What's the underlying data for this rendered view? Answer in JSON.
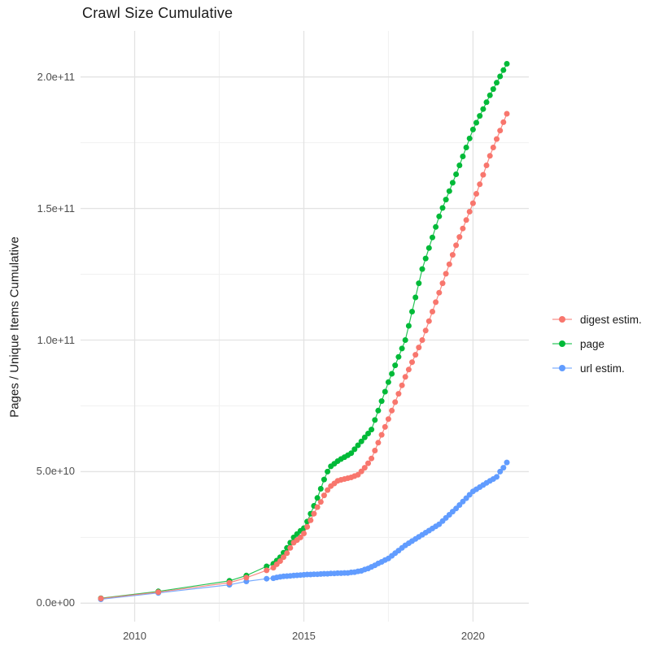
{
  "title": "Crawl Size Cumulative",
  "legend": {
    "position": "right",
    "items": [
      {
        "label": "digest estim.",
        "color": "#F8766D"
      },
      {
        "label": "page",
        "color": "#00BA38"
      },
      {
        "label": "url estim.",
        "color": "#619CFF"
      }
    ]
  },
  "chart_data": {
    "type": "line",
    "title": "Crawl Size Cumulative",
    "xlabel": "",
    "ylabel": "Pages / Unique Items Cumulative",
    "grid": true,
    "legend_position": "right",
    "xlim": [
      2008.4,
      2021.65
    ],
    "ylim": [
      -7000000000.0,
      217500000000.0
    ],
    "x_ticks": [
      {
        "value": 2010,
        "label": "2010"
      },
      {
        "value": 2015,
        "label": "2015"
      },
      {
        "value": 2020,
        "label": "2020"
      }
    ],
    "y_ticks": [
      {
        "value": 0,
        "label": "0.0e+00"
      },
      {
        "value": 50000000000.0,
        "label": "5.0e+10"
      },
      {
        "value": 100000000000.0,
        "label": "1.0e+11"
      },
      {
        "value": 150000000000.0,
        "label": "1.5e+11"
      },
      {
        "value": 200000000000.0,
        "label": "2.0e+11"
      }
    ],
    "x_minor": [
      2012.5,
      2017.5
    ],
    "y_minor": [
      25000000000.0,
      75000000000.0,
      125000000000.0,
      175000000000.0
    ],
    "value_multiplier": 1000000000.0,
    "draw_order": [
      2,
      1,
      0
    ],
    "series": [
      {
        "name": "digest estim.",
        "color": "#F8766D",
        "points": [
          [
            2009.0,
            1.8
          ],
          [
            2010.7,
            4.2
          ],
          [
            2012.8,
            7.8
          ],
          [
            2013.3,
            9.7
          ],
          [
            2013.9,
            12.5
          ],
          [
            2014.1,
            13.5
          ],
          [
            2014.2,
            14.8
          ],
          [
            2014.3,
            16
          ],
          [
            2014.4,
            17.5
          ],
          [
            2014.5,
            19
          ],
          [
            2014.6,
            21
          ],
          [
            2014.7,
            23
          ],
          [
            2014.8,
            24
          ],
          [
            2014.9,
            25
          ],
          [
            2015.0,
            26.5
          ],
          [
            2015.1,
            29
          ],
          [
            2015.2,
            31.5
          ],
          [
            2015.3,
            34
          ],
          [
            2015.4,
            36.5
          ],
          [
            2015.5,
            38.5
          ],
          [
            2015.6,
            41
          ],
          [
            2015.7,
            43
          ],
          [
            2015.8,
            44.5
          ],
          [
            2015.9,
            45.5
          ],
          [
            2016.0,
            46.5
          ],
          [
            2016.1,
            46.9
          ],
          [
            2016.2,
            47.2
          ],
          [
            2016.3,
            47.5
          ],
          [
            2016.4,
            47.8
          ],
          [
            2016.5,
            48.3
          ],
          [
            2016.6,
            48.8
          ],
          [
            2016.7,
            50.1
          ],
          [
            2016.8,
            51.5
          ],
          [
            2016.9,
            53.2
          ],
          [
            2017.0,
            55
          ],
          [
            2017.1,
            58
          ],
          [
            2017.2,
            61
          ],
          [
            2017.3,
            64
          ],
          [
            2017.4,
            67
          ],
          [
            2017.5,
            70
          ],
          [
            2017.6,
            73.2
          ],
          [
            2017.7,
            76.4
          ],
          [
            2017.8,
            79.6
          ],
          [
            2017.9,
            82.8
          ],
          [
            2018.0,
            86
          ],
          [
            2018.1,
            88.8
          ],
          [
            2018.2,
            91.6
          ],
          [
            2018.3,
            94.4
          ],
          [
            2018.4,
            97.2
          ],
          [
            2018.5,
            100
          ],
          [
            2018.6,
            103.6
          ],
          [
            2018.7,
            107.2
          ],
          [
            2018.8,
            110.8
          ],
          [
            2018.9,
            114.4
          ],
          [
            2019.0,
            118
          ],
          [
            2019.1,
            121.6
          ],
          [
            2019.2,
            125.2
          ],
          [
            2019.3,
            128.8
          ],
          [
            2019.4,
            132.4
          ],
          [
            2019.5,
            136
          ],
          [
            2019.6,
            139.2
          ],
          [
            2019.7,
            142.4
          ],
          [
            2019.8,
            145.6
          ],
          [
            2019.9,
            148.8
          ],
          [
            2020.0,
            152
          ],
          [
            2020.1,
            155.6
          ],
          [
            2020.2,
            159.2
          ],
          [
            2020.3,
            162.8
          ],
          [
            2020.4,
            166.4
          ],
          [
            2020.5,
            170
          ],
          [
            2020.6,
            173.2
          ],
          [
            2020.7,
            176.4
          ],
          [
            2020.8,
            179.6
          ],
          [
            2020.9,
            182.8
          ],
          [
            2021.0,
            186
          ]
        ]
      },
      {
        "name": "page",
        "color": "#00BA38",
        "points": [
          [
            2009.0,
            1.9
          ],
          [
            2010.7,
            4.5
          ],
          [
            2012.8,
            8.5
          ],
          [
            2013.3,
            10.5
          ],
          [
            2013.9,
            14
          ],
          [
            2014.1,
            15
          ],
          [
            2014.2,
            16.2
          ],
          [
            2014.3,
            17.5
          ],
          [
            2014.4,
            19.2
          ],
          [
            2014.5,
            21
          ],
          [
            2014.6,
            23
          ],
          [
            2014.7,
            25
          ],
          [
            2014.8,
            26.3
          ],
          [
            2014.9,
            27.5
          ],
          [
            2015.0,
            28.5
          ],
          [
            2015.1,
            31
          ],
          [
            2015.2,
            34
          ],
          [
            2015.3,
            37
          ],
          [
            2015.4,
            40
          ],
          [
            2015.5,
            43.5
          ],
          [
            2015.6,
            47
          ],
          [
            2015.7,
            50
          ],
          [
            2015.8,
            52
          ],
          [
            2015.9,
            53
          ],
          [
            2016.0,
            54
          ],
          [
            2016.1,
            54.8
          ],
          [
            2016.2,
            55.5
          ],
          [
            2016.3,
            56.2
          ],
          [
            2016.4,
            57
          ],
          [
            2016.5,
            58.5
          ],
          [
            2016.6,
            60
          ],
          [
            2016.7,
            61.5
          ],
          [
            2016.8,
            63
          ],
          [
            2016.9,
            64.5
          ],
          [
            2017.0,
            66
          ],
          [
            2017.1,
            69.6
          ],
          [
            2017.2,
            73.2
          ],
          [
            2017.3,
            76.8
          ],
          [
            2017.4,
            80.4
          ],
          [
            2017.5,
            84
          ],
          [
            2017.6,
            87.2
          ],
          [
            2017.7,
            90.4
          ],
          [
            2017.8,
            93.6
          ],
          [
            2017.9,
            96.8
          ],
          [
            2018.0,
            100
          ],
          [
            2018.1,
            105.4
          ],
          [
            2018.2,
            110.8
          ],
          [
            2018.3,
            116.2
          ],
          [
            2018.4,
            121.6
          ],
          [
            2018.5,
            127
          ],
          [
            2018.6,
            131
          ],
          [
            2018.7,
            135
          ],
          [
            2018.8,
            139
          ],
          [
            2018.9,
            143
          ],
          [
            2019.0,
            147
          ],
          [
            2019.1,
            150.2
          ],
          [
            2019.2,
            153.4
          ],
          [
            2019.3,
            156.6
          ],
          [
            2019.4,
            159.8
          ],
          [
            2019.5,
            163
          ],
          [
            2019.6,
            166.4
          ],
          [
            2019.7,
            169.8
          ],
          [
            2019.8,
            173.2
          ],
          [
            2019.9,
            176.6
          ],
          [
            2020.0,
            180
          ],
          [
            2020.1,
            182.6
          ],
          [
            2020.2,
            185.2
          ],
          [
            2020.3,
            187.8
          ],
          [
            2020.4,
            190.4
          ],
          [
            2020.5,
            193
          ],
          [
            2020.6,
            195.4
          ],
          [
            2020.7,
            197.8
          ],
          [
            2020.8,
            200.2
          ],
          [
            2020.9,
            202.6
          ],
          [
            2021.0,
            205
          ]
        ]
      },
      {
        "name": "url estim.",
        "color": "#619CFF",
        "points": [
          [
            2009.0,
            1.5
          ],
          [
            2010.7,
            3.9
          ],
          [
            2012.8,
            7.0
          ],
          [
            2013.3,
            8.3
          ],
          [
            2013.9,
            9.3
          ],
          [
            2014.1,
            9.5
          ],
          [
            2014.2,
            9.8
          ],
          [
            2014.3,
            10
          ],
          [
            2014.4,
            10.2
          ],
          [
            2014.5,
            10.3
          ],
          [
            2014.6,
            10.4
          ],
          [
            2014.7,
            10.5
          ],
          [
            2014.8,
            10.6
          ],
          [
            2014.9,
            10.7
          ],
          [
            2015.0,
            10.8
          ],
          [
            2015.1,
            10.9
          ],
          [
            2015.2,
            10.9
          ],
          [
            2015.3,
            11
          ],
          [
            2015.4,
            11
          ],
          [
            2015.5,
            11.1
          ],
          [
            2015.6,
            11.2
          ],
          [
            2015.7,
            11.2
          ],
          [
            2015.8,
            11.3
          ],
          [
            2015.9,
            11.3
          ],
          [
            2016.0,
            11.4
          ],
          [
            2016.1,
            11.4
          ],
          [
            2016.2,
            11.5
          ],
          [
            2016.3,
            11.5
          ],
          [
            2016.4,
            11.7
          ],
          [
            2016.5,
            11.8
          ],
          [
            2016.6,
            12.1
          ],
          [
            2016.7,
            12.3
          ],
          [
            2016.8,
            12.8
          ],
          [
            2016.9,
            13.2
          ],
          [
            2017.0,
            13.8
          ],
          [
            2017.1,
            14.4
          ],
          [
            2017.2,
            15.1
          ],
          [
            2017.3,
            15.7
          ],
          [
            2017.4,
            16.4
          ],
          [
            2017.5,
            17
          ],
          [
            2017.6,
            18
          ],
          [
            2017.7,
            19
          ],
          [
            2017.8,
            20
          ],
          [
            2017.9,
            21
          ],
          [
            2018.0,
            22
          ],
          [
            2018.1,
            22.8
          ],
          [
            2018.2,
            23.6
          ],
          [
            2018.3,
            24.4
          ],
          [
            2018.4,
            25.2
          ],
          [
            2018.5,
            26
          ],
          [
            2018.6,
            26.8
          ],
          [
            2018.7,
            27.6
          ],
          [
            2018.8,
            28.4
          ],
          [
            2018.9,
            29.2
          ],
          [
            2019.0,
            30
          ],
          [
            2019.1,
            31.2
          ],
          [
            2019.2,
            32.4
          ],
          [
            2019.3,
            33.6
          ],
          [
            2019.4,
            34.8
          ],
          [
            2019.5,
            36
          ],
          [
            2019.6,
            37.3
          ],
          [
            2019.7,
            38.6
          ],
          [
            2019.8,
            39.9
          ],
          [
            2019.9,
            41.2
          ],
          [
            2020.0,
            42.5
          ],
          [
            2020.1,
            43.3
          ],
          [
            2020.2,
            44.1
          ],
          [
            2020.3,
            44.9
          ],
          [
            2020.4,
            45.7
          ],
          [
            2020.5,
            46.5
          ],
          [
            2020.6,
            47.2
          ],
          [
            2020.7,
            48
          ],
          [
            2020.8,
            50
          ],
          [
            2020.9,
            51.5
          ],
          [
            2021.0,
            53.5
          ]
        ]
      }
    ]
  }
}
